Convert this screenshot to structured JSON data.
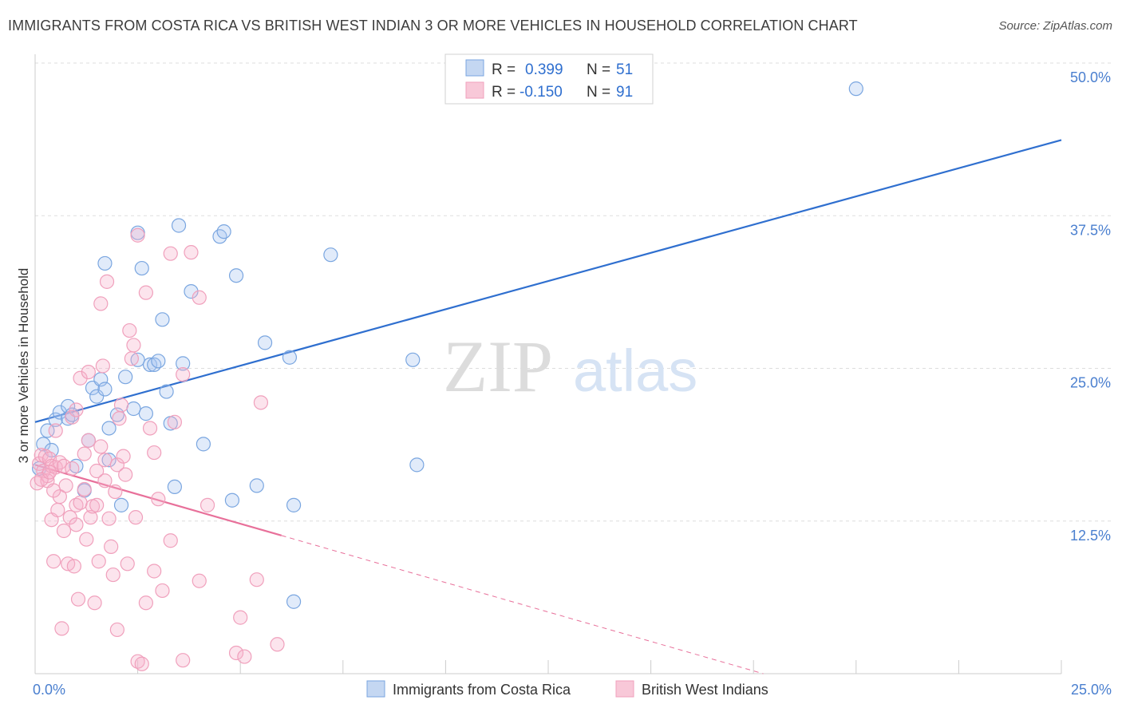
{
  "chart_data": {
    "type": "scatter",
    "title": "IMMIGRANTS FROM COSTA RICA VS BRITISH WEST INDIAN 3 OR MORE VEHICLES IN HOUSEHOLD CORRELATION CHART",
    "source": "Source: ZipAtlas.com",
    "watermark": {
      "zip": "ZIP",
      "atlas": "atlas"
    },
    "xlabel": "",
    "ylabel": "3 or more Vehicles in Household",
    "xlim": [
      0,
      25
    ],
    "ylim": [
      0,
      50
    ],
    "x_tick_labels": [
      {
        "value": 0,
        "label": "0.0%"
      },
      {
        "value": 25,
        "label": "25.0%"
      }
    ],
    "y_tick_labels": [
      {
        "value": 12.5,
        "label": "12.5%"
      },
      {
        "value": 25,
        "label": "25.0%"
      },
      {
        "value": 37.5,
        "label": "37.5%"
      },
      {
        "value": 50,
        "label": "50.0%"
      }
    ],
    "legend": {
      "position": "top-center",
      "rows": [
        {
          "r_label": "R =",
          "r_value": "0.399",
          "n_label": "N =",
          "n_value": "51"
        },
        {
          "r_label": "R =",
          "r_value": "-0.150",
          "n_label": "N =",
          "n_value": "91"
        }
      ]
    },
    "series": [
      {
        "name": "Immigrants from Costa Rica",
        "color": "#7aa6e0",
        "line_color": "#2f6fcf",
        "trend": {
          "x0": 0,
          "y0": 20.6,
          "x1": 25,
          "y1": 43.7,
          "solid_to": 25
        },
        "points": [
          [
            0.2,
            18.8
          ],
          [
            0.3,
            19.9
          ],
          [
            0.4,
            18.3
          ],
          [
            0.5,
            20.8
          ],
          [
            0.6,
            21.4
          ],
          [
            0.8,
            20.9
          ],
          [
            0.8,
            21.9
          ],
          [
            0.9,
            21.2
          ],
          [
            1.0,
            17.0
          ],
          [
            1.2,
            15.0
          ],
          [
            1.3,
            19.1
          ],
          [
            1.4,
            23.4
          ],
          [
            1.5,
            22.7
          ],
          [
            1.6,
            24.1
          ],
          [
            1.7,
            33.6
          ],
          [
            1.7,
            23.3
          ],
          [
            1.8,
            17.5
          ],
          [
            1.8,
            20.1
          ],
          [
            2.0,
            21.2
          ],
          [
            2.1,
            13.8
          ],
          [
            2.2,
            24.3
          ],
          [
            2.4,
            21.7
          ],
          [
            2.5,
            25.7
          ],
          [
            2.5,
            36.1
          ],
          [
            2.6,
            33.2
          ],
          [
            2.7,
            21.3
          ],
          [
            2.8,
            25.3
          ],
          [
            2.9,
            25.3
          ],
          [
            3.0,
            25.6
          ],
          [
            3.1,
            29.0
          ],
          [
            3.2,
            23.1
          ],
          [
            3.3,
            20.5
          ],
          [
            3.4,
            15.3
          ],
          [
            3.5,
            36.7
          ],
          [
            3.6,
            25.4
          ],
          [
            3.8,
            31.3
          ],
          [
            4.1,
            18.8
          ],
          [
            4.5,
            35.8
          ],
          [
            4.6,
            36.2
          ],
          [
            4.8,
            14.2
          ],
          [
            4.9,
            32.6
          ],
          [
            5.4,
            15.4
          ],
          [
            5.6,
            27.1
          ],
          [
            6.2,
            25.9
          ],
          [
            6.3,
            13.8
          ],
          [
            6.3,
            5.9
          ],
          [
            7.2,
            34.3
          ],
          [
            9.2,
            25.7
          ],
          [
            9.3,
            17.1
          ],
          [
            20.0,
            47.9
          ],
          [
            0.1,
            16.8
          ]
        ]
      },
      {
        "name": "British West Indians",
        "color": "#f0a0bc",
        "line_color": "#e8709a",
        "trend": {
          "x0": 0,
          "y0": 17.1,
          "x1": 25,
          "y1": -7.0,
          "solid_to": 6.0
        },
        "points": [
          [
            0.05,
            15.6
          ],
          [
            0.1,
            17.2
          ],
          [
            0.15,
            17.9
          ],
          [
            0.2,
            16.6
          ],
          [
            0.25,
            17.8
          ],
          [
            0.3,
            16.2
          ],
          [
            0.3,
            15.8
          ],
          [
            0.35,
            17.6
          ],
          [
            0.4,
            17.0
          ],
          [
            0.4,
            12.6
          ],
          [
            0.45,
            9.2
          ],
          [
            0.5,
            16.9
          ],
          [
            0.5,
            19.9
          ],
          [
            0.55,
            13.4
          ],
          [
            0.6,
            14.5
          ],
          [
            0.6,
            17.3
          ],
          [
            0.65,
            3.7
          ],
          [
            0.7,
            11.7
          ],
          [
            0.7,
            17.0
          ],
          [
            0.75,
            15.4
          ],
          [
            0.8,
            9.0
          ],
          [
            0.85,
            12.8
          ],
          [
            0.9,
            16.8
          ],
          [
            0.9,
            21.0
          ],
          [
            0.95,
            8.8
          ],
          [
            1.0,
            13.8
          ],
          [
            1.0,
            12.2
          ],
          [
            1.0,
            21.6
          ],
          [
            1.05,
            6.1
          ],
          [
            1.1,
            14.0
          ],
          [
            1.1,
            24.2
          ],
          [
            1.2,
            18.0
          ],
          [
            1.2,
            15.1
          ],
          [
            1.25,
            11.0
          ],
          [
            1.3,
            24.7
          ],
          [
            1.3,
            19.1
          ],
          [
            1.35,
            12.8
          ],
          [
            1.4,
            13.7
          ],
          [
            1.45,
            5.8
          ],
          [
            1.5,
            13.8
          ],
          [
            1.5,
            16.6
          ],
          [
            1.55,
            9.2
          ],
          [
            1.6,
            30.3
          ],
          [
            1.6,
            18.6
          ],
          [
            1.65,
            25.2
          ],
          [
            1.7,
            15.8
          ],
          [
            1.7,
            17.5
          ],
          [
            1.75,
            32.1
          ],
          [
            1.8,
            12.7
          ],
          [
            1.85,
            10.4
          ],
          [
            1.9,
            8.1
          ],
          [
            1.95,
            14.9
          ],
          [
            2.0,
            3.6
          ],
          [
            2.0,
            17.1
          ],
          [
            2.05,
            20.9
          ],
          [
            2.1,
            22.0
          ],
          [
            2.15,
            17.8
          ],
          [
            2.2,
            16.3
          ],
          [
            2.25,
            9.0
          ],
          [
            2.3,
            28.1
          ],
          [
            2.35,
            25.8
          ],
          [
            2.4,
            26.9
          ],
          [
            2.45,
            12.8
          ],
          [
            2.5,
            35.9
          ],
          [
            2.5,
            1.0
          ],
          [
            2.6,
            0.8
          ],
          [
            2.7,
            31.2
          ],
          [
            2.7,
            5.8
          ],
          [
            2.8,
            20.1
          ],
          [
            2.9,
            18.1
          ],
          [
            2.9,
            8.4
          ],
          [
            3.0,
            14.3
          ],
          [
            3.1,
            6.8
          ],
          [
            3.3,
            34.4
          ],
          [
            3.3,
            10.9
          ],
          [
            3.4,
            20.6
          ],
          [
            3.6,
            24.5
          ],
          [
            3.6,
            1.1
          ],
          [
            3.8,
            34.5
          ],
          [
            4.0,
            30.8
          ],
          [
            4.0,
            7.6
          ],
          [
            4.2,
            13.8
          ],
          [
            4.9,
            1.7
          ],
          [
            5.0,
            4.6
          ],
          [
            5.1,
            1.4
          ],
          [
            5.4,
            7.7
          ],
          [
            5.5,
            22.2
          ],
          [
            5.9,
            2.4
          ],
          [
            0.15,
            15.9
          ],
          [
            0.35,
            16.5
          ],
          [
            0.45,
            15.0
          ]
        ]
      }
    ]
  }
}
